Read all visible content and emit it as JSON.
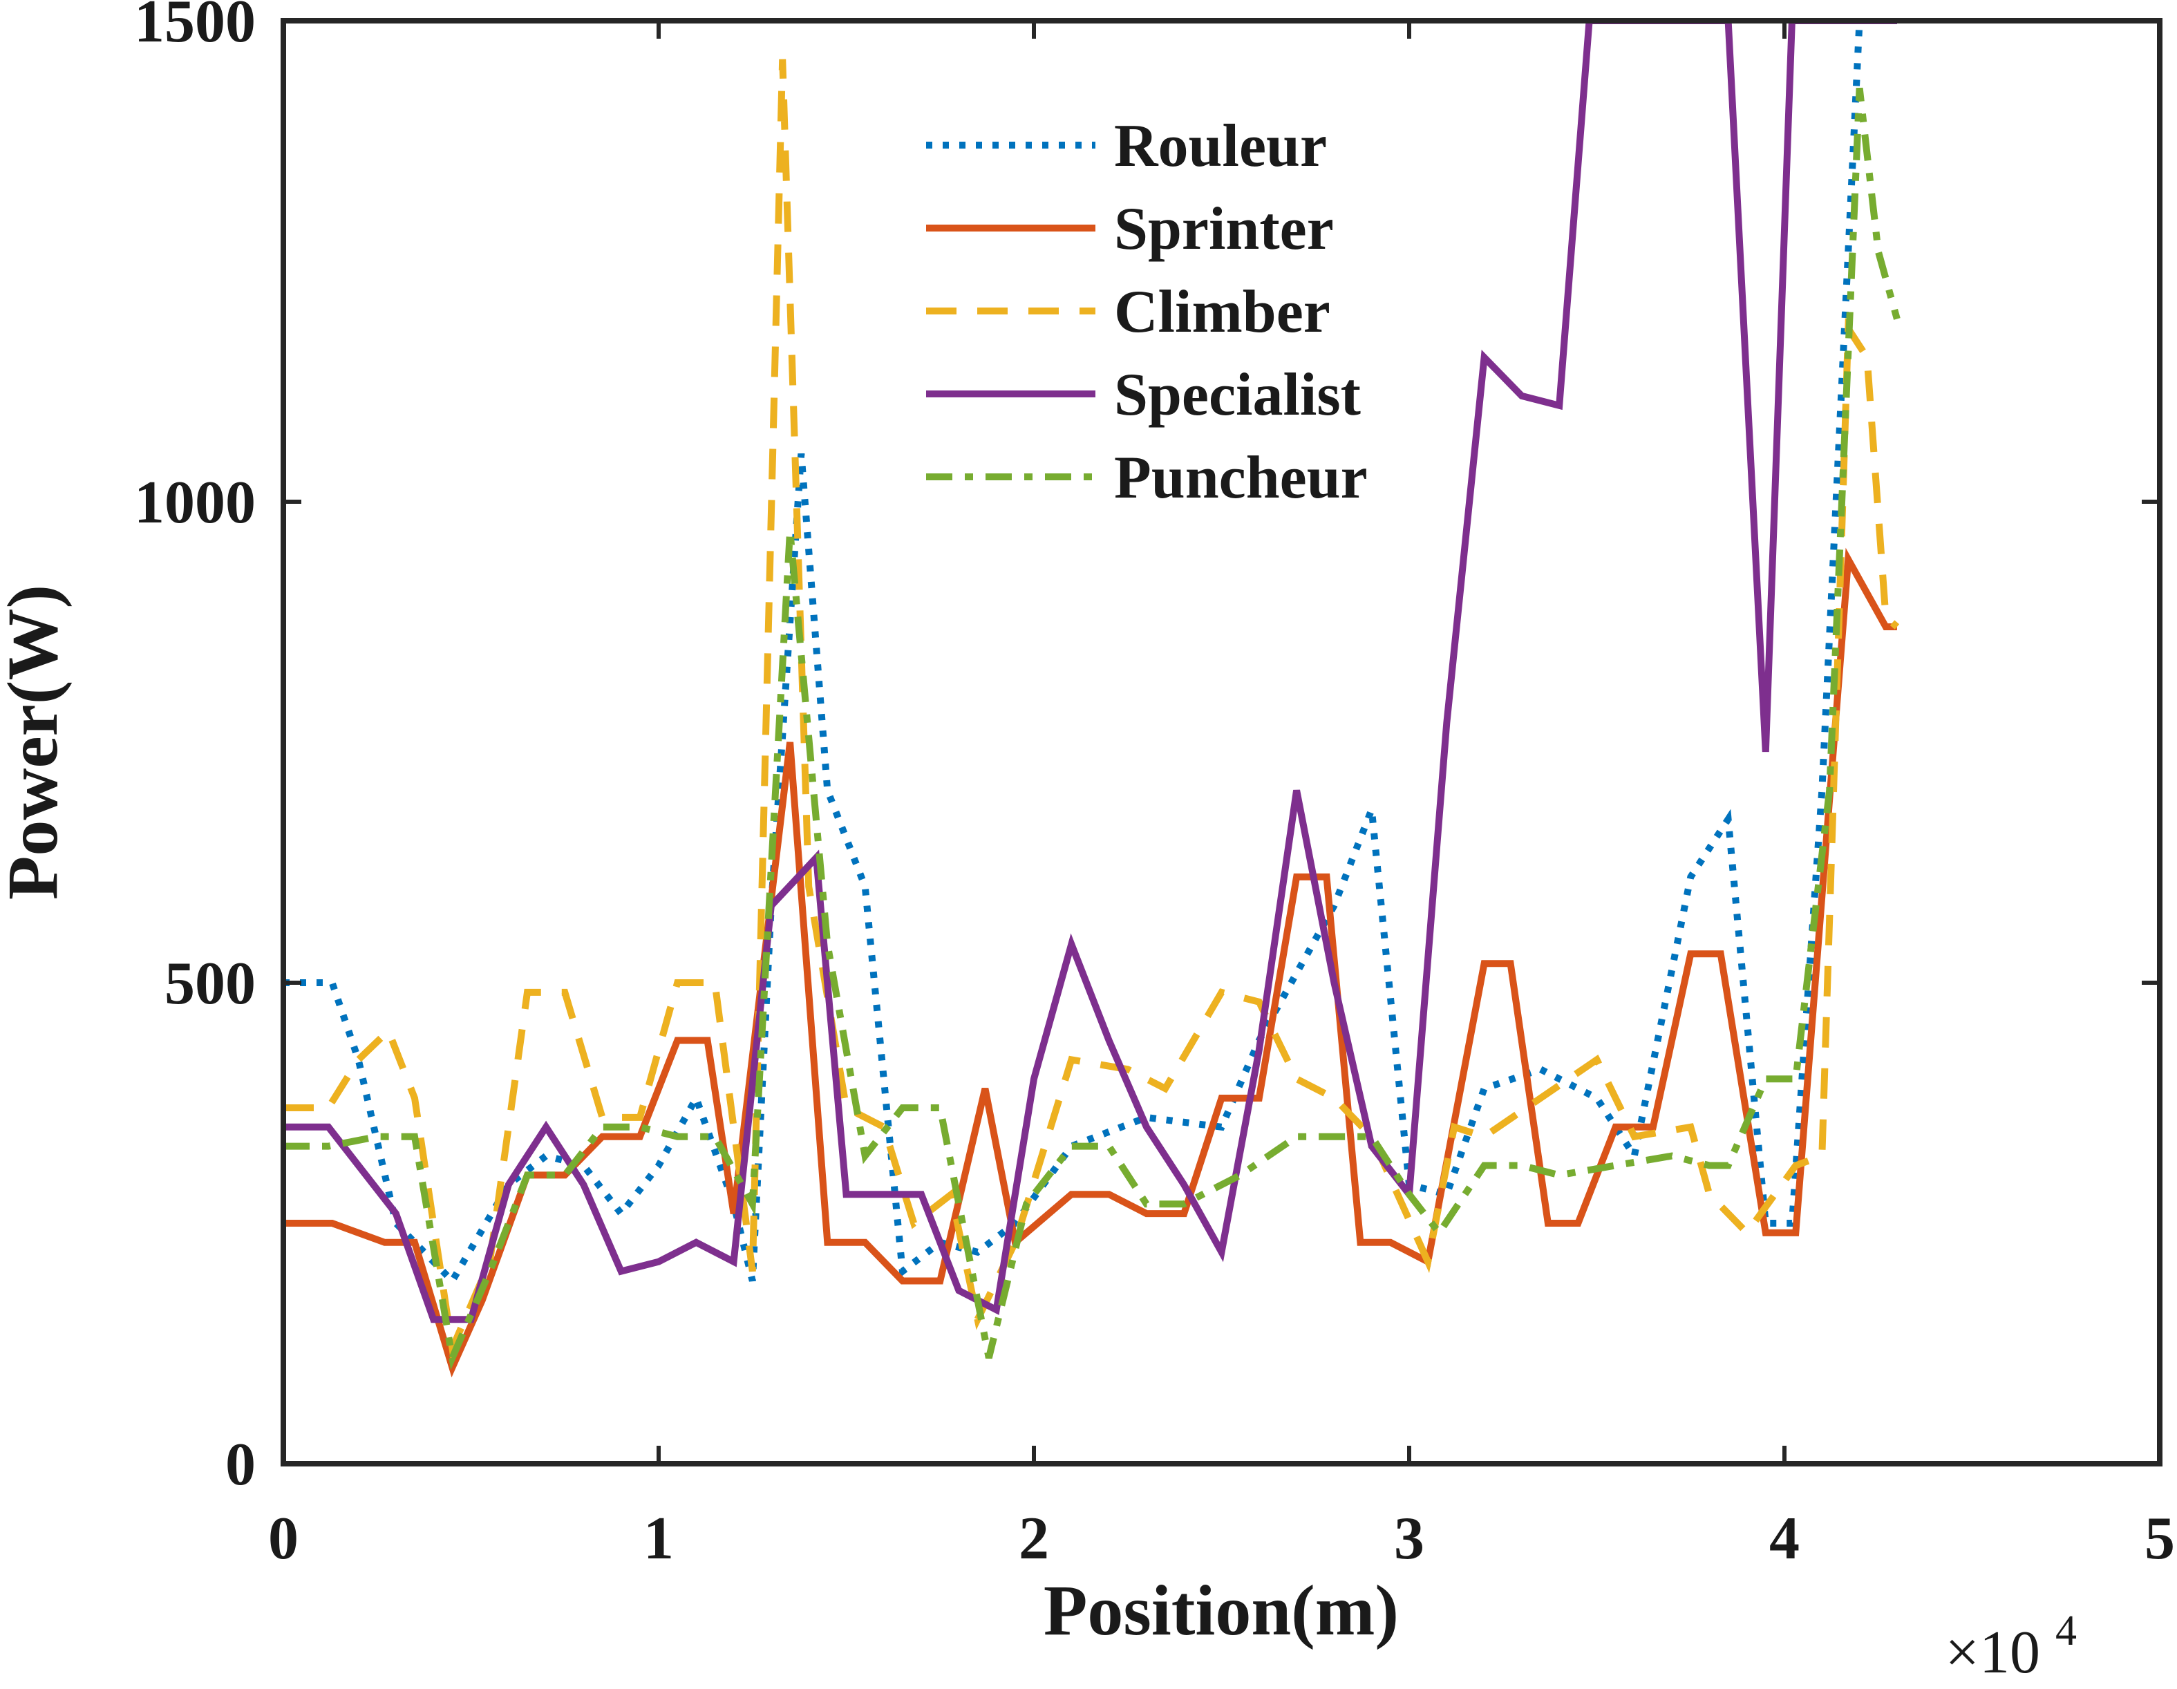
{
  "chart_data": {
    "type": "line",
    "title": "",
    "xlabel": "Position(m)",
    "ylabel": "Power(W)",
    "x_exponent_base": "×10",
    "x_exponent_power": "4",
    "xlim": [
      0,
      5
    ],
    "ylim": [
      0,
      1500
    ],
    "x_ticks": [
      0,
      1,
      2,
      3,
      4,
      5
    ],
    "y_ticks": [
      0,
      500,
      1000,
      1500
    ],
    "x_tick_labels": [
      "0",
      "1",
      "2",
      "3",
      "4",
      "5"
    ],
    "y_tick_labels": [
      "0",
      "500",
      "1000",
      "1500"
    ],
    "grid": false,
    "legend_position": "top-center",
    "series": [
      {
        "name": "Rouleur",
        "color": "#0072BD",
        "style": "dotted",
        "points": [
          [
            0,
            500
          ],
          [
            0.13,
            500
          ],
          [
            0.2,
            420
          ],
          [
            0.3,
            250
          ],
          [
            0.45,
            190
          ],
          [
            0.6,
            290
          ],
          [
            0.7,
            320
          ],
          [
            0.8,
            310
          ],
          [
            0.9,
            260
          ],
          [
            1.0,
            310
          ],
          [
            1.1,
            380
          ],
          [
            1.2,
            270
          ],
          [
            1.25,
            190
          ],
          [
            1.3,
            580
          ],
          [
            1.38,
            1050
          ],
          [
            1.45,
            700
          ],
          [
            1.55,
            600
          ],
          [
            1.65,
            200
          ],
          [
            1.75,
            230
          ],
          [
            1.85,
            220
          ],
          [
            1.95,
            250
          ],
          [
            2.1,
            330
          ],
          [
            2.3,
            360
          ],
          [
            2.5,
            350
          ],
          [
            2.6,
            440
          ],
          [
            2.8,
            580
          ],
          [
            2.9,
            680
          ],
          [
            3.0,
            290
          ],
          [
            3.1,
            280
          ],
          [
            3.2,
            390
          ],
          [
            3.35,
            410
          ],
          [
            3.5,
            380
          ],
          [
            3.6,
            320
          ],
          [
            3.75,
            610
          ],
          [
            3.85,
            670
          ],
          [
            3.95,
            250
          ],
          [
            4.02,
            250
          ],
          [
            4.1,
            700
          ],
          [
            4.2,
            1500
          ],
          [
            4.3,
            1500
          ]
        ]
      },
      {
        "name": "Sprinter",
        "color": "#D95319",
        "style": "solid",
        "points": [
          [
            0,
            250
          ],
          [
            0.13,
            250
          ],
          [
            0.27,
            230
          ],
          [
            0.35,
            230
          ],
          [
            0.45,
            100
          ],
          [
            0.53,
            170
          ],
          [
            0.65,
            300
          ],
          [
            0.75,
            300
          ],
          [
            0.85,
            340
          ],
          [
            0.95,
            340
          ],
          [
            1.05,
            440
          ],
          [
            1.13,
            440
          ],
          [
            1.2,
            260
          ],
          [
            1.35,
            750
          ],
          [
            1.45,
            230
          ],
          [
            1.55,
            230
          ],
          [
            1.65,
            190
          ],
          [
            1.75,
            190
          ],
          [
            1.87,
            390
          ],
          [
            1.95,
            230
          ],
          [
            2.1,
            280
          ],
          [
            2.2,
            280
          ],
          [
            2.3,
            260
          ],
          [
            2.4,
            260
          ],
          [
            2.5,
            380
          ],
          [
            2.6,
            380
          ],
          [
            2.7,
            610
          ],
          [
            2.78,
            610
          ],
          [
            2.87,
            230
          ],
          [
            2.95,
            230
          ],
          [
            3.05,
            210
          ],
          [
            3.2,
            520
          ],
          [
            3.27,
            520
          ],
          [
            3.37,
            250
          ],
          [
            3.45,
            250
          ],
          [
            3.55,
            350
          ],
          [
            3.65,
            350
          ],
          [
            3.75,
            530
          ],
          [
            3.83,
            530
          ],
          [
            3.95,
            240
          ],
          [
            4.03,
            240
          ],
          [
            4.17,
            940
          ],
          [
            4.27,
            870
          ],
          [
            4.3,
            870
          ]
        ]
      },
      {
        "name": "Climber",
        "color": "#EDB120",
        "style": "dashed",
        "points": [
          [
            0,
            370
          ],
          [
            0.12,
            370
          ],
          [
            0.2,
            420
          ],
          [
            0.28,
            450
          ],
          [
            0.35,
            380
          ],
          [
            0.45,
            120
          ],
          [
            0.55,
            210
          ],
          [
            0.65,
            490
          ],
          [
            0.75,
            490
          ],
          [
            0.85,
            360
          ],
          [
            0.95,
            360
          ],
          [
            1.05,
            500
          ],
          [
            1.15,
            500
          ],
          [
            1.25,
            200
          ],
          [
            1.33,
            1460
          ],
          [
            1.4,
            600
          ],
          [
            1.5,
            370
          ],
          [
            1.6,
            350
          ],
          [
            1.68,
            250
          ],
          [
            1.78,
            280
          ],
          [
            1.85,
            150
          ],
          [
            1.95,
            230
          ],
          [
            2.1,
            420
          ],
          [
            2.25,
            410
          ],
          [
            2.35,
            390
          ],
          [
            2.5,
            490
          ],
          [
            2.6,
            480
          ],
          [
            2.7,
            400
          ],
          [
            2.8,
            380
          ],
          [
            2.9,
            340
          ],
          [
            3.05,
            210
          ],
          [
            3.12,
            350
          ],
          [
            3.2,
            340
          ],
          [
            3.35,
            380
          ],
          [
            3.5,
            420
          ],
          [
            3.6,
            340
          ],
          [
            3.75,
            350
          ],
          [
            3.8,
            280
          ],
          [
            3.9,
            240
          ],
          [
            4.03,
            310
          ],
          [
            4.1,
            320
          ],
          [
            4.17,
            1180
          ],
          [
            4.22,
            1150
          ],
          [
            4.27,
            880
          ],
          [
            4.3,
            870
          ]
        ]
      },
      {
        "name": "Specialist",
        "color": "#7E2F8E",
        "style": "solid",
        "points": [
          [
            0,
            350
          ],
          [
            0.12,
            350
          ],
          [
            0.3,
            260
          ],
          [
            0.4,
            150
          ],
          [
            0.5,
            150
          ],
          [
            0.6,
            290
          ],
          [
            0.7,
            350
          ],
          [
            0.8,
            290
          ],
          [
            0.9,
            200
          ],
          [
            1.0,
            210
          ],
          [
            1.1,
            230
          ],
          [
            1.2,
            210
          ],
          [
            1.3,
            580
          ],
          [
            1.42,
            630
          ],
          [
            1.5,
            280
          ],
          [
            1.6,
            280
          ],
          [
            1.7,
            280
          ],
          [
            1.8,
            180
          ],
          [
            1.9,
            160
          ],
          [
            2.0,
            400
          ],
          [
            2.1,
            540
          ],
          [
            2.2,
            440
          ],
          [
            2.3,
            350
          ],
          [
            2.4,
            290
          ],
          [
            2.5,
            220
          ],
          [
            2.6,
            430
          ],
          [
            2.7,
            700
          ],
          [
            2.8,
            500
          ],
          [
            2.9,
            330
          ],
          [
            3.0,
            280
          ],
          [
            3.1,
            770
          ],
          [
            3.2,
            1150
          ],
          [
            3.3,
            1110
          ],
          [
            3.4,
            1100
          ],
          [
            3.48,
            1500
          ],
          [
            3.55,
            1500
          ],
          [
            3.85,
            1500
          ],
          [
            3.95,
            740
          ],
          [
            4.02,
            1500
          ],
          [
            4.3,
            1500
          ]
        ]
      },
      {
        "name": "Puncheur",
        "color": "#77AC30",
        "style": "dashdot",
        "points": [
          [
            0,
            330
          ],
          [
            0.12,
            330
          ],
          [
            0.25,
            340
          ],
          [
            0.35,
            340
          ],
          [
            0.45,
            110
          ],
          [
            0.55,
            200
          ],
          [
            0.65,
            300
          ],
          [
            0.75,
            300
          ],
          [
            0.85,
            350
          ],
          [
            0.95,
            350
          ],
          [
            1.05,
            340
          ],
          [
            1.15,
            340
          ],
          [
            1.25,
            270
          ],
          [
            1.35,
            970
          ],
          [
            1.45,
            540
          ],
          [
            1.55,
            320
          ],
          [
            1.65,
            370
          ],
          [
            1.75,
            370
          ],
          [
            1.88,
            110
          ],
          [
            1.98,
            270
          ],
          [
            2.1,
            330
          ],
          [
            2.2,
            330
          ],
          [
            2.3,
            270
          ],
          [
            2.4,
            270
          ],
          [
            2.55,
            300
          ],
          [
            2.7,
            340
          ],
          [
            2.8,
            340
          ],
          [
            2.9,
            340
          ],
          [
            3.0,
            280
          ],
          [
            3.08,
            240
          ],
          [
            3.2,
            310
          ],
          [
            3.3,
            310
          ],
          [
            3.4,
            300
          ],
          [
            3.55,
            310
          ],
          [
            3.7,
            320
          ],
          [
            3.8,
            310
          ],
          [
            3.85,
            310
          ],
          [
            3.95,
            400
          ],
          [
            4.03,
            400
          ],
          [
            4.12,
            700
          ],
          [
            4.2,
            1430
          ],
          [
            4.25,
            1260
          ],
          [
            4.3,
            1190
          ]
        ]
      }
    ]
  }
}
